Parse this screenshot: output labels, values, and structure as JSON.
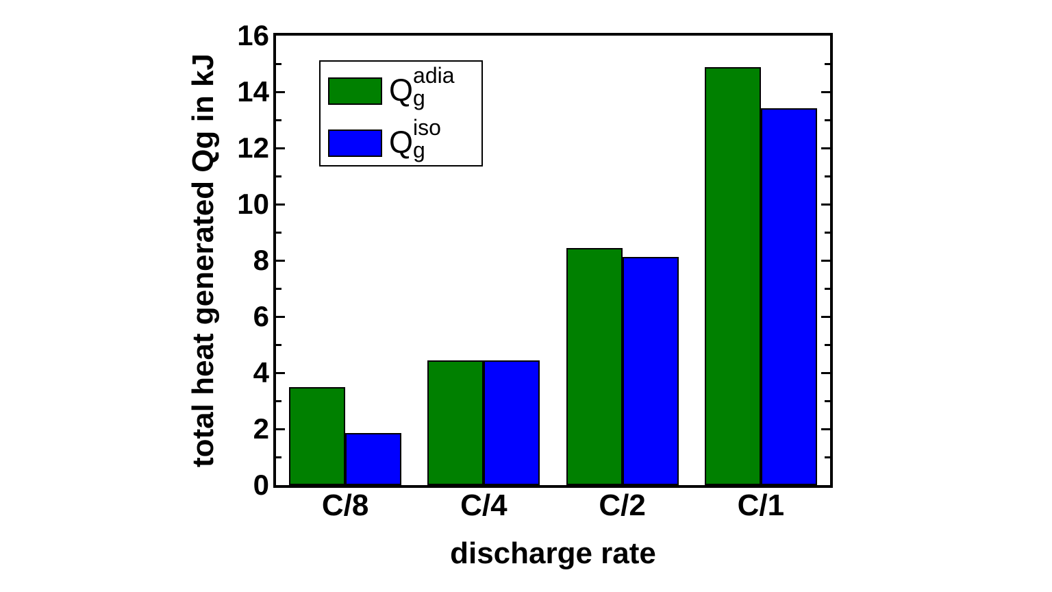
{
  "chart_data": {
    "type": "bar",
    "title": "",
    "xlabel": "discharge rate",
    "ylabel": "total heat generated Qg in kJ",
    "categories": [
      "C/8",
      "C/4",
      "C/2",
      "C/1"
    ],
    "series": [
      {
        "name": "Qg adia",
        "label": {
          "base": "Q",
          "sub": "g",
          "sup": "adia"
        },
        "color": "#008000",
        "values": [
          3.48,
          4.45,
          8.45,
          14.87
        ]
      },
      {
        "name": "Qg iso",
        "label": {
          "base": "Q",
          "sub": "g",
          "sup": "iso"
        },
        "color": "#0000ff",
        "values": [
          1.86,
          4.43,
          8.13,
          13.41
        ]
      }
    ],
    "ylim": [
      0,
      16
    ],
    "yticks": [
      0,
      2,
      4,
      6,
      8,
      10,
      12,
      14,
      16
    ],
    "yticks_minor": [
      1,
      3,
      5,
      7,
      9,
      11,
      13,
      15
    ],
    "grid": false,
    "legend_position": "top-left",
    "axis_color": "#000000",
    "bar_outline_color": "#000000",
    "background_color": "#ffffff"
  }
}
